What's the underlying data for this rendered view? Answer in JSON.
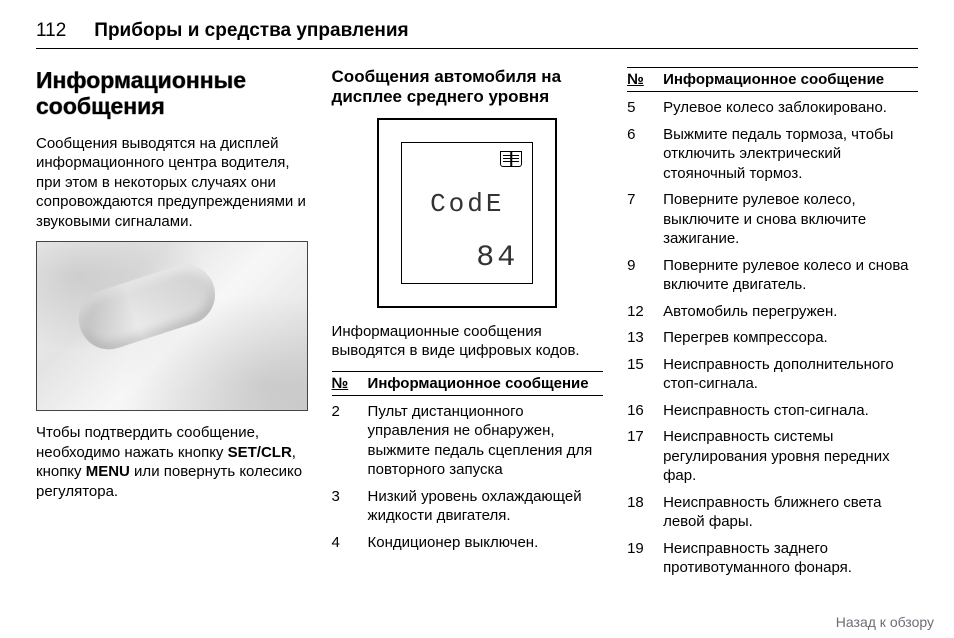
{
  "page_number": "112",
  "chapter_title": "Приборы и средства управления",
  "section_title": "Информационные сообщения",
  "intro_paragraph": "Сообщения выводятся на дисплей информационного центра водителя, при этом в некоторых случаях они сопровождаются предупреждениями и звуковыми сигналами.",
  "confirm_prefix": "Чтобы подтвердить сообщение, необходимо нажать кнопку ",
  "confirm_b1": "SET/CLR",
  "confirm_mid": ", кнопку ",
  "confirm_b2": "MENU",
  "confirm_suffix": " или повернуть колесико регулятора.",
  "midlevel_heading": "Сообщения автомобиля на дисплее среднего уровня",
  "display": {
    "line1": "CodE",
    "line2": "84"
  },
  "codes_intro": "Информационные сообщения выводятся в виде цифровых кодов.",
  "table_header_num": "№",
  "table_header_msg": "Информационное сообщение",
  "codes_col2": [
    {
      "n": "2",
      "t": "Пульт дистанционного управления не обнаружен, выжмите педаль сцепления для повторного запуска"
    },
    {
      "n": "3",
      "t": "Низкий уровень охлаждающей жидкости двигателя."
    },
    {
      "n": "4",
      "t": "Кондиционер выключен."
    }
  ],
  "codes_col3": [
    {
      "n": "5",
      "t": "Рулевое колесо заблокировано."
    },
    {
      "n": "6",
      "t": "Выжмите педаль тормоза, чтобы отключить электрический стояночный тормоз."
    },
    {
      "n": "7",
      "t": "Поверните рулевое колесо, выключите и снова включите зажигание."
    },
    {
      "n": "9",
      "t": "Поверните рулевое колесо и снова включите двигатель."
    },
    {
      "n": "12",
      "t": "Автомобиль перегружен."
    },
    {
      "n": "13",
      "t": "Перегрев компрессора."
    },
    {
      "n": "15",
      "t": "Неисправность дополнительного стоп-сигнала."
    },
    {
      "n": "16",
      "t": "Неисправность стоп-сигнала."
    },
    {
      "n": "17",
      "t": "Неисправность системы регулирования уровня передних фар."
    },
    {
      "n": "18",
      "t": "Неисправность ближнего света левой фары."
    },
    {
      "n": "19",
      "t": "Неисправность заднего противотуманного фонаря."
    }
  ],
  "footer_link": "Назад к обзору"
}
